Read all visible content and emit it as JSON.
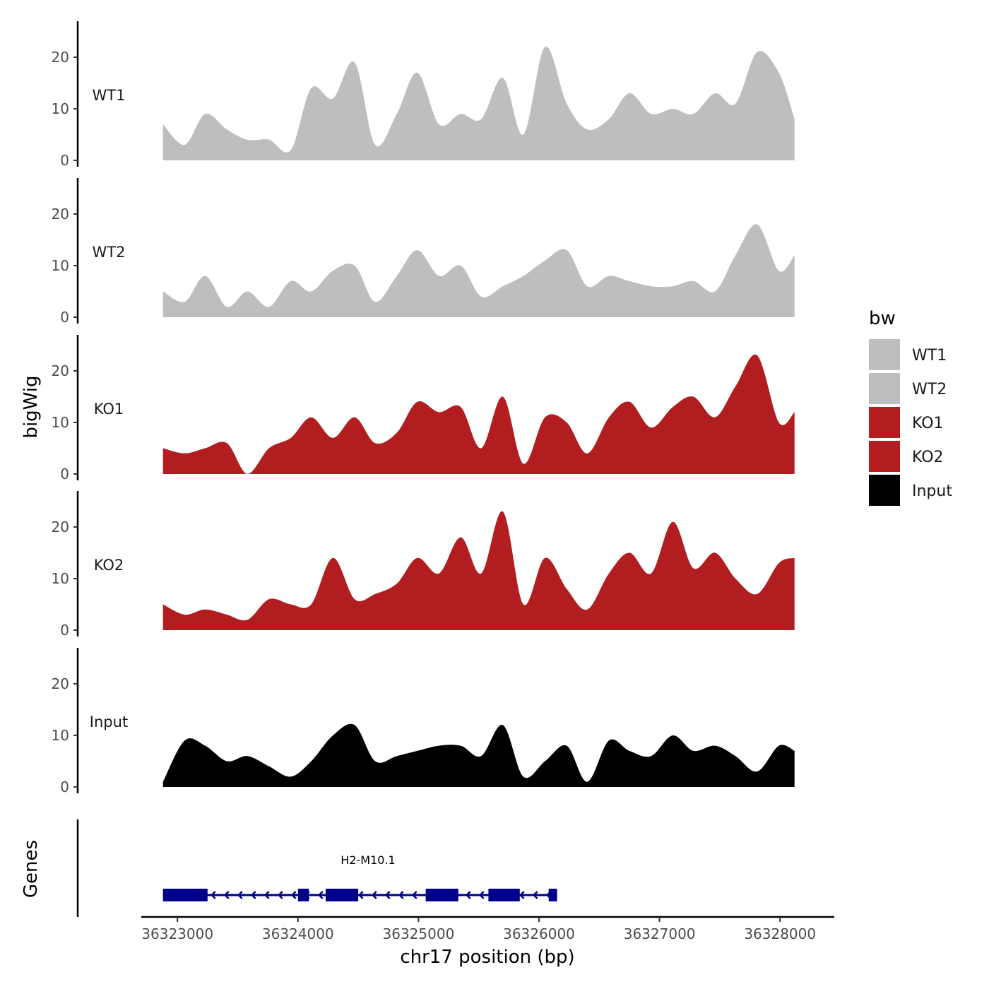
{
  "chart_data": {
    "type": "area",
    "title": "",
    "xlabel": "chr17 position (bp)",
    "ylabel": "bigWig",
    "genes_label": "Genes",
    "xlim": [
      36322700,
      36328450
    ],
    "ylim": [
      0,
      27
    ],
    "x_ticks": [
      36323000,
      36324000,
      36325000,
      36326000,
      36327000,
      36328000
    ],
    "x_tick_labels": [
      "36323000",
      "36324000",
      "36325000",
      "36326000",
      "36327000",
      "36328000"
    ],
    "y_ticks": [
      0,
      10,
      20
    ],
    "y_tick_labels": [
      "0",
      "10",
      "20"
    ],
    "colors": {
      "WT1": "#bebebe",
      "WT2": "#bebebe",
      "KO1": "#b21d1f",
      "KO2": "#b21d1f",
      "Input": "#000000",
      "gene": "#00008b"
    },
    "x": [
      36322880,
      36323060,
      36323230,
      36323410,
      36323580,
      36323760,
      36323940,
      36324110,
      36324290,
      36324470,
      36324640,
      36324820,
      36324990,
      36325170,
      36325350,
      36325520,
      36325700,
      36325870,
      36326050,
      36326230,
      36326400,
      36326580,
      36326750,
      36326930,
      36327110,
      36327280,
      36327460,
      36327630,
      36327810,
      36327990,
      36328120
    ],
    "series": [
      {
        "name": "WT1",
        "values": [
          7,
          3,
          9,
          6,
          4,
          4,
          2,
          14,
          12,
          19,
          3,
          9,
          17,
          7,
          9,
          8,
          16,
          5,
          22,
          11,
          6,
          8,
          13,
          9,
          10,
          9,
          13,
          11,
          21,
          17,
          8
        ]
      },
      {
        "name": "WT2",
        "values": [
          5,
          3,
          8,
          2,
          5,
          2,
          7,
          5,
          9,
          10,
          3,
          8,
          13,
          8,
          10,
          4,
          6,
          8,
          11,
          13,
          6,
          8,
          7,
          6,
          6,
          7,
          5,
          12,
          18,
          9,
          12
        ]
      },
      {
        "name": "KO1",
        "values": [
          5,
          4,
          5,
          6,
          0,
          5,
          7,
          11,
          7,
          11,
          6,
          8,
          14,
          12,
          13,
          5,
          15,
          2,
          11,
          10,
          4,
          11,
          14,
          9,
          13,
          15,
          11,
          17,
          23,
          10,
          12
        ]
      },
      {
        "name": "KO2",
        "values": [
          5,
          3,
          4,
          3,
          2,
          6,
          5,
          5,
          14,
          6,
          7,
          9,
          14,
          11,
          18,
          11,
          23,
          5,
          14,
          8,
          4,
          11,
          15,
          11,
          21,
          12,
          15,
          10,
          7,
          13,
          14
        ]
      },
      {
        "name": "Input",
        "values": [
          1,
          9,
          8,
          5,
          6,
          4,
          2,
          5,
          10,
          12,
          5,
          6,
          7,
          8,
          8,
          6,
          12,
          2,
          5,
          8,
          1,
          9,
          7,
          6,
          10,
          7,
          8,
          6,
          3,
          8,
          7
        ]
      }
    ],
    "legend": {
      "title": "bw",
      "position": "right",
      "entries": [
        "WT1",
        "WT2",
        "KO1",
        "KO2",
        "Input"
      ]
    },
    "gene_track": {
      "gene_name": "H2-M10.1",
      "strand": "-",
      "start": 36322880,
      "end": 36326150,
      "exons": [
        [
          36322880,
          36323250
        ],
        [
          36324000,
          36324090
        ],
        [
          36324230,
          36324500
        ],
        [
          36325060,
          36325330
        ],
        [
          36325580,
          36325840
        ],
        [
          36326080,
          36326150
        ]
      ]
    }
  }
}
